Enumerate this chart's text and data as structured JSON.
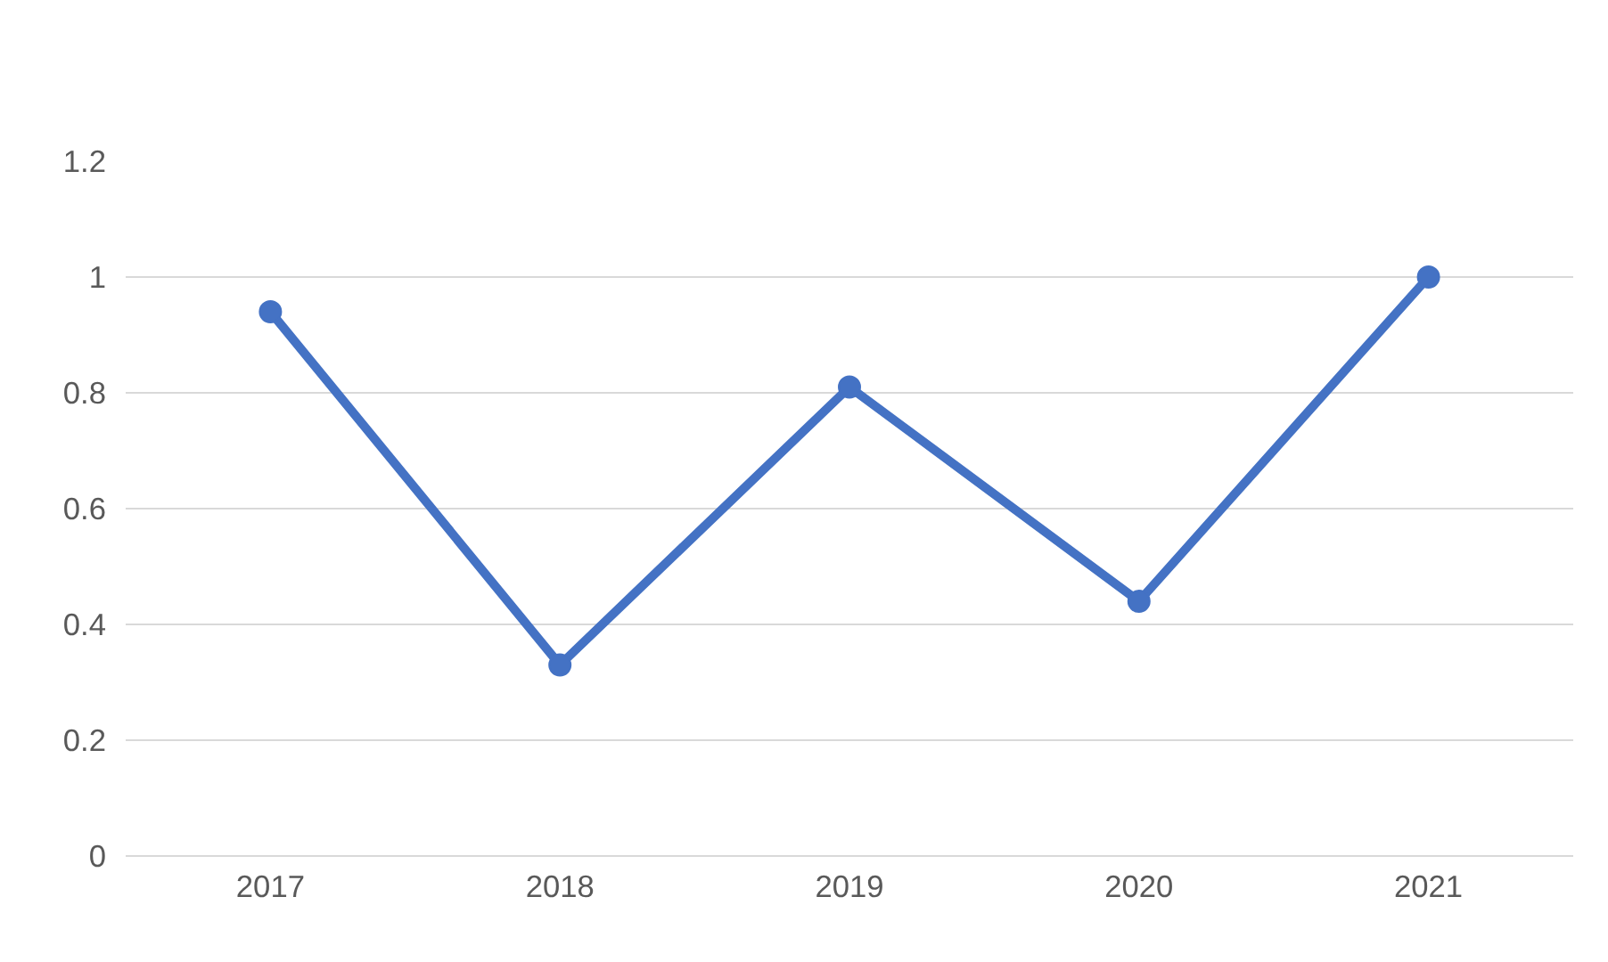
{
  "chart_data": {
    "type": "line",
    "categories": [
      "2017",
      "2018",
      "2019",
      "2020",
      "2021"
    ],
    "series": [
      {
        "color": "#4472c4",
        "values": [
          0.94,
          0.33,
          0.81,
          0.44,
          1.0
        ]
      }
    ],
    "ylim": [
      0,
      1.2
    ],
    "yticks": [
      0,
      0.2,
      0.4,
      0.6,
      0.8,
      1,
      1.2
    ],
    "grid": "y",
    "marker": "circle",
    "line_style": "solid"
  }
}
